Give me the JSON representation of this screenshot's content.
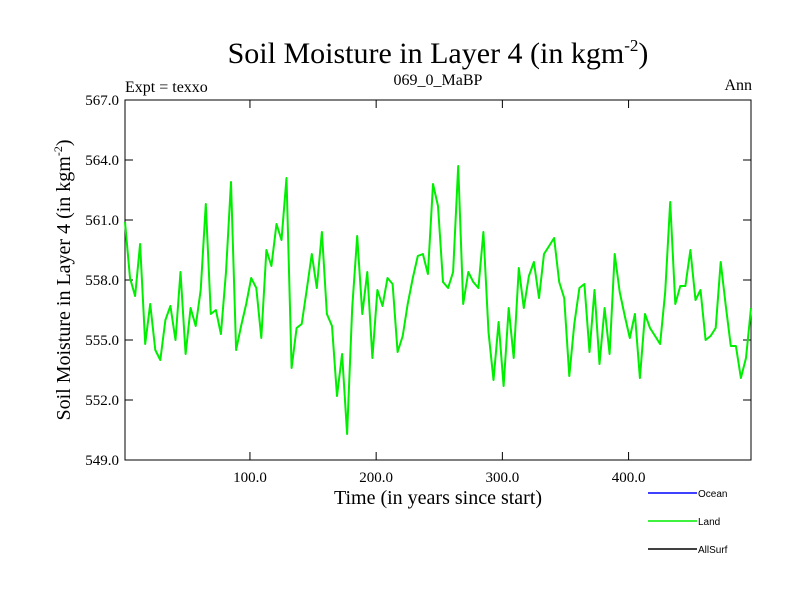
{
  "header": {
    "title_main": "Soil Moisture in Layer 4 (in kgm",
    "title_sup": "-2",
    "title_close": ")",
    "expt": "Expt = texxo",
    "run_id": "069_0_MaBP",
    "period": "Ann"
  },
  "chart_data": {
    "type": "line",
    "title": "Soil Moisture in Layer 4 (in kgm-2)",
    "xlabel": "Time (in years since start)",
    "ylabel": "Soil Moisture in Layer 4 (in kgm-2)",
    "xlim": [
      1,
      497
    ],
    "ylim": [
      549.0,
      567.0
    ],
    "x_ticks": [
      {
        "value": 100,
        "label": "100.0"
      },
      {
        "value": 200,
        "label": "200.0"
      },
      {
        "value": 300,
        "label": "300.0"
      },
      {
        "value": 400,
        "label": "400.0"
      }
    ],
    "y_ticks": [
      {
        "value": 549,
        "label": "549.0"
      },
      {
        "value": 552,
        "label": "552.0"
      },
      {
        "value": 555,
        "label": "555.0"
      },
      {
        "value": 558,
        "label": "558.0"
      },
      {
        "value": 561,
        "label": "561.0"
      },
      {
        "value": 564,
        "label": "564.0"
      },
      {
        "value": 567,
        "label": "567.0"
      }
    ],
    "ylabel_parts": {
      "main": "Soil Moisture in Layer 4 (in kgm",
      "sup": "-2",
      "close": ")"
    },
    "legend": [
      {
        "name": "Ocean",
        "color": "#0000ff"
      },
      {
        "name": "Land",
        "color": "#00ee00"
      },
      {
        "name": "AllSurf",
        "color": "#000000"
      }
    ],
    "series": [
      {
        "name": "Land",
        "color": "#00ee00",
        "x_start": 1,
        "x_step": 4,
        "values": [
          560.9,
          558.1,
          557.2,
          559.8,
          554.8,
          556.8,
          554.5,
          554.0,
          556.0,
          556.7,
          555.0,
          558.4,
          554.3,
          556.6,
          555.7,
          557.5,
          561.8,
          556.3,
          556.5,
          555.3,
          558.4,
          562.9,
          554.5,
          555.7,
          556.8,
          558.1,
          557.6,
          555.1,
          559.5,
          558.7,
          560.8,
          560.0,
          563.1,
          553.6,
          555.6,
          555.8,
          557.5,
          559.3,
          557.6,
          560.4,
          556.3,
          555.7,
          552.2,
          554.3,
          550.3,
          556.6,
          560.2,
          556.3,
          558.4,
          554.1,
          557.5,
          556.7,
          558.1,
          557.8,
          554.4,
          555.2,
          556.8,
          558.1,
          559.2,
          559.3,
          558.3,
          562.8,
          561.7,
          557.9,
          557.6,
          558.4,
          563.7,
          556.8,
          558.4,
          557.9,
          557.6,
          560.4,
          555.4,
          553.0,
          555.9,
          552.7,
          556.6,
          554.1,
          558.6,
          556.6,
          558.2,
          558.9,
          557.1,
          559.3,
          559.7,
          560.1,
          557.9,
          557.1,
          553.2,
          555.8,
          557.6,
          557.8,
          554.4,
          557.5,
          553.8,
          556.6,
          554.3,
          559.3,
          557.4,
          556.2,
          555.1,
          556.3,
          553.1,
          556.3,
          555.6,
          555.2,
          554.8,
          557.4,
          561.9,
          556.8,
          557.7,
          557.7,
          559.5,
          557.0,
          557.5,
          555.0,
          555.2,
          555.6,
          558.9,
          556.7,
          554.7,
          554.7,
          553.1,
          554.1,
          556.6
        ]
      }
    ]
  }
}
